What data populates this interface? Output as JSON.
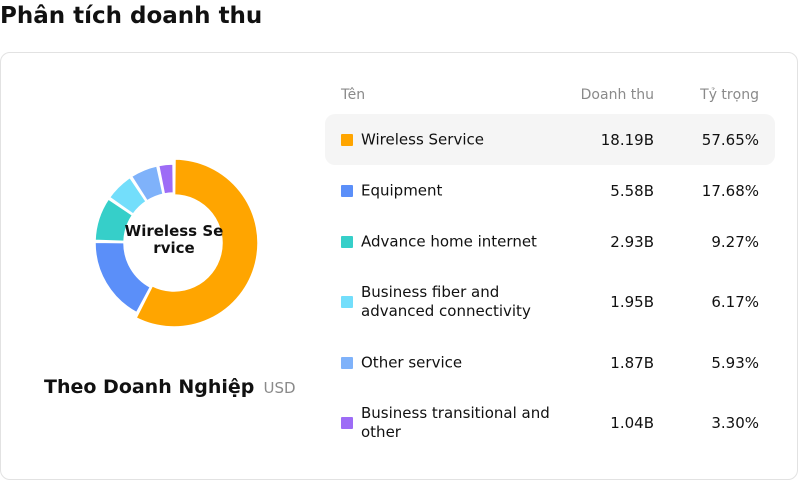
{
  "page_title": "Phân tích doanh thu",
  "chart": {
    "center_label": "Wireless Service",
    "subtitle": "Theo Doanh Nghiệp",
    "unit": "USD"
  },
  "table": {
    "headers": {
      "name": "Tên",
      "revenue": "Doanh thu",
      "share": "Tỷ trọng"
    }
  },
  "chart_data": {
    "type": "pie",
    "donut": true,
    "highlighted_index": 0,
    "categories": [
      "Wireless Service",
      "Equipment",
      "Advance home internet",
      "Business fiber and advanced connectivity",
      "Other service",
      "Business transitional and other"
    ],
    "revenue_labels": [
      "18.19B",
      "5.58B",
      "2.93B",
      "1.95B",
      "1.87B",
      "1.04B"
    ],
    "share_labels": [
      "57.65%",
      "17.68%",
      "9.27%",
      "6.17%",
      "5.93%",
      "3.30%"
    ],
    "values": [
      57.65,
      17.68,
      9.27,
      6.17,
      5.93,
      3.3
    ],
    "colors": [
      "#FFA500",
      "#5B8FF9",
      "#36CFC9",
      "#73DEFB",
      "#7FB2FA",
      "#9D6CF6"
    ]
  }
}
